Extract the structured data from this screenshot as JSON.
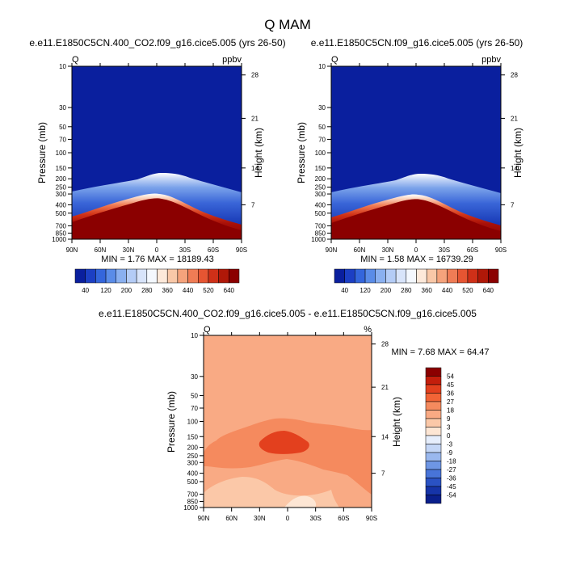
{
  "page_title": "Q MAM",
  "colors": {
    "dark_red": "#8b0000",
    "dark_blue": "#0a1f9e",
    "white": "#ffffff",
    "frame": "#000000"
  },
  "chart_data": [
    {
      "type": "heatmap",
      "title": "e.e11.E1850C5CN.400_CO2.f09_g16.cice5.005 (yrs 26-50)",
      "left_label": "Q",
      "right_label": "ppbv",
      "xlabel": "",
      "ylabel": "Pressure (mb)",
      "y2label": "Height (km)",
      "xticks": [
        "90N",
        "60N",
        "30N",
        "0",
        "30S",
        "60S",
        "90S"
      ],
      "xlim": [
        90,
        -90
      ],
      "ylim": [
        1000,
        10
      ],
      "ylog": true,
      "yticks": [
        "10",
        "30",
        "50",
        "70",
        "100",
        "150",
        "200",
        "250",
        "300",
        "400",
        "500",
        "700",
        "850",
        "1000"
      ],
      "y2ticks": [
        "28",
        "21",
        "14",
        "7"
      ],
      "stats": "MIN =  1.76  MAX = 18189.43",
      "colorbar": {
        "orientation": "horizontal",
        "labels": [
          "40",
          "120",
          "200",
          "280",
          "360",
          "440",
          "520",
          "640"
        ],
        "colors": [
          "#0a1f9e",
          "#1c3fc4",
          "#3466dc",
          "#5a8ce8",
          "#8ab0f0",
          "#b4ccf6",
          "#d8e4fa",
          "#f4f8fe",
          "#fde9da",
          "#f9c8a8",
          "#f5a37c",
          "#f07c55",
          "#e65532",
          "#cf3018",
          "#b01808",
          "#8b0000"
        ]
      }
    },
    {
      "type": "heatmap",
      "title": "e.e11.E1850C5CN.f09_g16.cice5.005 (yrs 26-50)",
      "left_label": "Q",
      "right_label": "ppbv",
      "xlabel": "",
      "ylabel": "Pressure (mb)",
      "y2label": "Height (km)",
      "xticks": [
        "90N",
        "60N",
        "30N",
        "0",
        "30S",
        "60S",
        "90S"
      ],
      "xlim": [
        90,
        -90
      ],
      "ylim": [
        1000,
        10
      ],
      "ylog": true,
      "yticks": [
        "10",
        "30",
        "50",
        "70",
        "100",
        "150",
        "200",
        "250",
        "300",
        "400",
        "500",
        "700",
        "850",
        "1000"
      ],
      "y2ticks": [
        "28",
        "21",
        "14",
        "7"
      ],
      "stats": "MIN =  1.58  MAX = 16739.29",
      "colorbar": {
        "orientation": "horizontal",
        "labels": [
          "40",
          "120",
          "200",
          "280",
          "360",
          "440",
          "520",
          "640"
        ],
        "colors": [
          "#0a1f9e",
          "#1c3fc4",
          "#3466dc",
          "#5a8ce8",
          "#8ab0f0",
          "#b4ccf6",
          "#d8e4fa",
          "#f4f8fe",
          "#fde9da",
          "#f9c8a8",
          "#f5a37c",
          "#f07c55",
          "#e65532",
          "#cf3018",
          "#b01808",
          "#8b0000"
        ]
      }
    },
    {
      "type": "heatmap",
      "title": "e.e11.E1850C5CN.400_CO2.f09_g16.cice5.005 - e.e11.E1850C5CN.f09_g16.cice5.005",
      "left_label": "Q",
      "right_label": "%",
      "xlabel": "",
      "ylabel": "Pressure (mb)",
      "y2label": "Height (km)",
      "xticks": [
        "90N",
        "60N",
        "30N",
        "0",
        "30S",
        "60S",
        "90S"
      ],
      "xlim": [
        90,
        -90
      ],
      "ylim": [
        1000,
        10
      ],
      "ylog": true,
      "yticks": [
        "10",
        "30",
        "50",
        "70",
        "100",
        "150",
        "200",
        "250",
        "300",
        "400",
        "500",
        "700",
        "850",
        "1000"
      ],
      "y2ticks": [
        "28",
        "21",
        "14",
        "7"
      ],
      "stats": "MIN =  7.68  MAX = 64.47",
      "colorbar": {
        "orientation": "vertical",
        "labels": [
          "54",
          "45",
          "36",
          "27",
          "18",
          "9",
          "3",
          "0",
          "-3",
          "-9",
          "-18",
          "-27",
          "-36",
          "-45",
          "-54"
        ],
        "colors": [
          "#8b0000",
          "#c41e0c",
          "#e3401e",
          "#f26436",
          "#f58a5e",
          "#f9aa84",
          "#fbc8a8",
          "#fde6d4",
          "#e6eefc",
          "#c4d6f6",
          "#9ab8ee",
          "#6e96e4",
          "#4874d8",
          "#2a52c4",
          "#1634a8",
          "#0a1f8c"
        ]
      }
    }
  ]
}
